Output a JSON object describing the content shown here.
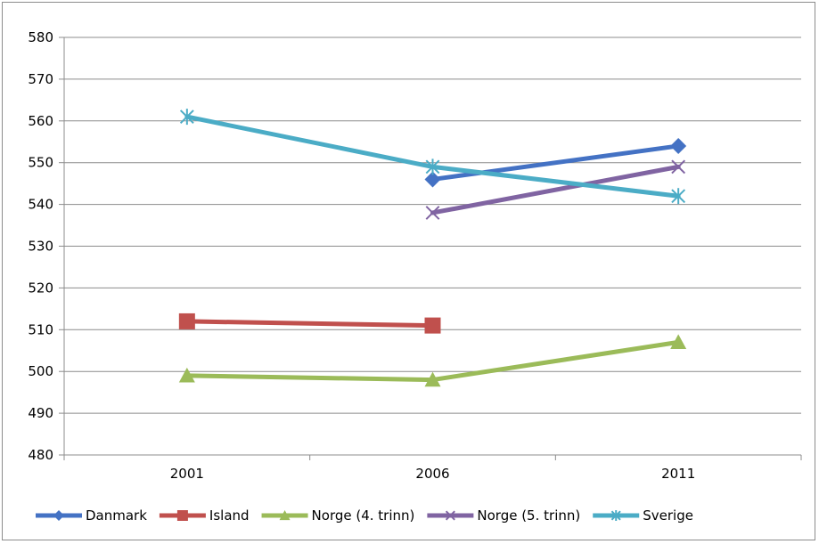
{
  "chart_data": {
    "type": "line",
    "categories": [
      "2001",
      "2006",
      "2011"
    ],
    "ylim": [
      480,
      580
    ],
    "yticks": [
      480,
      490,
      500,
      510,
      520,
      530,
      540,
      550,
      560,
      570,
      580
    ],
    "grid": true,
    "legend_position": "bottom",
    "series": [
      {
        "name": "Danmark",
        "values": [
          null,
          546,
          554
        ],
        "color": "#4472C4",
        "marker": "diamond"
      },
      {
        "name": "Island",
        "values": [
          512,
          511,
          null
        ],
        "color": "#C0504D",
        "marker": "square"
      },
      {
        "name": "Norge (4. trinn)",
        "values": [
          499,
          498,
          507
        ],
        "color": "#9BBB59",
        "marker": "triangle"
      },
      {
        "name": "Norge (5. trinn)",
        "values": [
          null,
          538,
          549
        ],
        "color": "#8064A2",
        "marker": "x"
      },
      {
        "name": "Sverige",
        "values": [
          561,
          549,
          542
        ],
        "color": "#4BACC6",
        "marker": "star"
      }
    ]
  }
}
